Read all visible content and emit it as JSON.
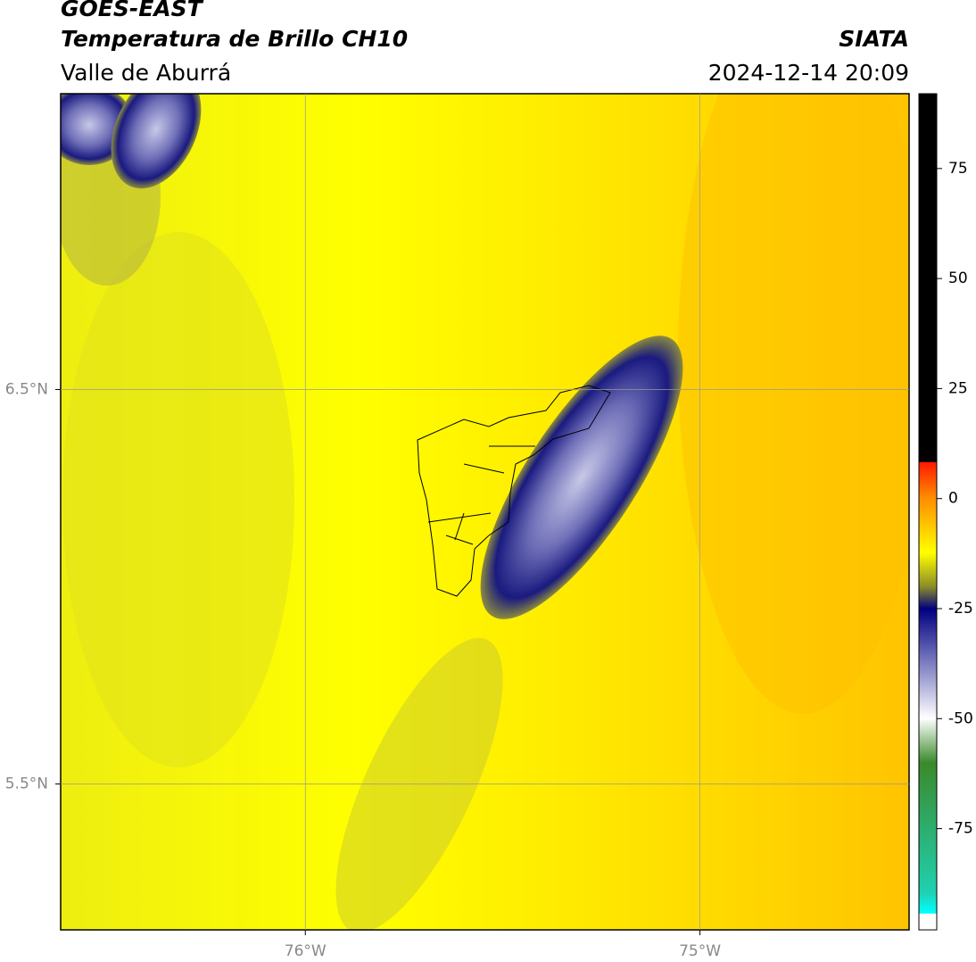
{
  "header": {
    "title": "GOES-EAST",
    "subtitle": "Temperatura de Brillo CH10",
    "region": "Valle de Aburrá",
    "source": "SIATA",
    "datetime": "2024-12-14 20:09"
  },
  "map": {
    "xlim": [
      -76.62,
      -74.47
    ],
    "ylim": [
      5.13,
      7.25
    ],
    "xticks": [
      {
        "value": -76,
        "label": "76°W"
      },
      {
        "value": -75,
        "label": "75°W"
      }
    ],
    "yticks": [
      {
        "value": 5.5,
        "label": "5.5°N"
      },
      {
        "value": 6.5,
        "label": "6.5°N"
      }
    ],
    "grid": true
  },
  "colorbar": {
    "lim": [
      -98,
      92
    ],
    "ticks": [
      75,
      50,
      25,
      0,
      -25,
      -50,
      -75
    ]
  }
}
